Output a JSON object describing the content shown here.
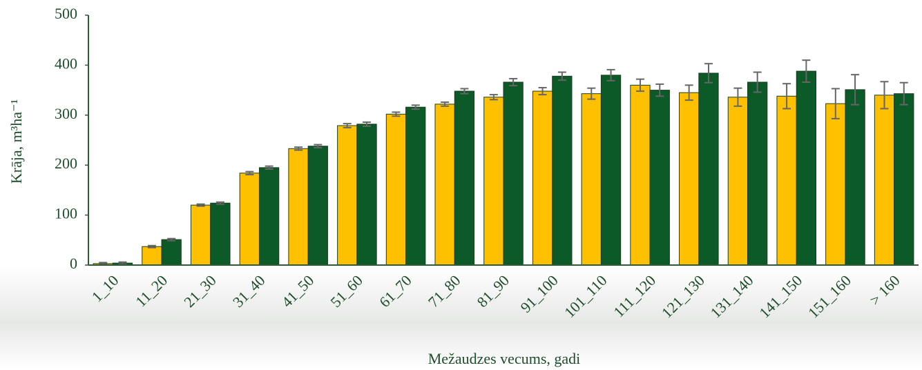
{
  "chart_data": {
    "type": "bar",
    "y_label": "Krāja, m³ha⁻¹",
    "x_label": "Mežaudzes vecums, gadi",
    "categories": [
      "1_10",
      "11_20",
      "21_30",
      "31_40",
      "41_50",
      "51_60",
      "61_70",
      "71_80",
      "81_90",
      "91_100",
      "101_110",
      "111_120",
      "121_130",
      "131_140",
      "141_150",
      "151_160",
      "> 160"
    ],
    "series": [
      {
        "color": "#ffc000",
        "values": [
          3,
          37,
          120,
          184,
          233,
          279,
          302,
          322,
          336,
          348,
          343,
          360,
          345,
          336,
          338,
          323,
          340
        ],
        "errors": [
          2,
          2,
          2,
          3,
          3,
          4,
          4,
          4,
          5,
          7,
          11,
          12,
          15,
          18,
          25,
          30,
          27
        ]
      },
      {
        "color": "#0b5a27",
        "values": [
          4,
          51,
          124,
          195,
          238,
          282,
          316,
          348,
          366,
          378,
          380,
          350,
          384,
          366,
          388,
          351,
          343
        ],
        "errors": [
          2,
          2,
          2,
          3,
          3,
          4,
          4,
          5,
          7,
          8,
          11,
          12,
          19,
          20,
          22,
          30,
          22
        ]
      }
    ],
    "ylim": [
      0,
      500
    ],
    "yticks": [
      0,
      100,
      200,
      300,
      400,
      500
    ]
  }
}
